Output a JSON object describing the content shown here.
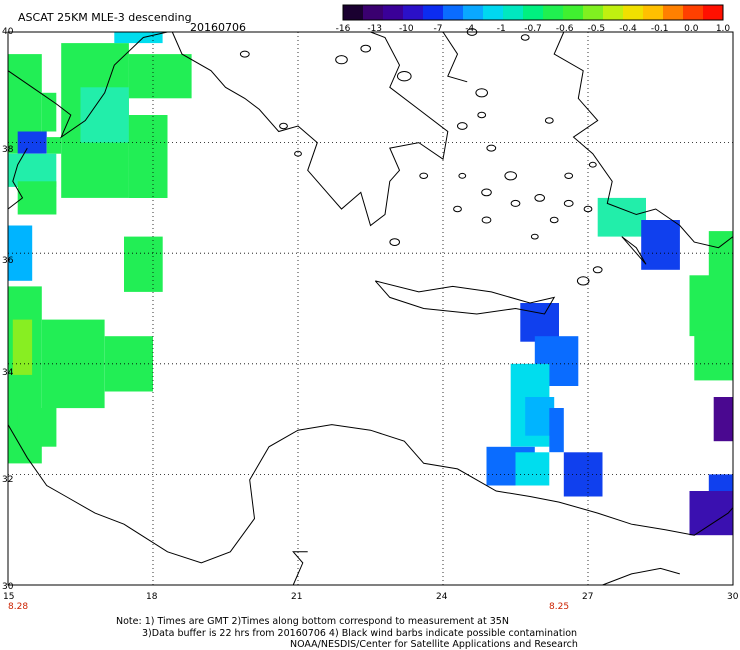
{
  "header": {
    "title": "ASCAT 25KM MLE-3 descending",
    "date": "20160706"
  },
  "colorbar": {
    "labels": [
      "-16",
      "-13",
      "-10",
      "-7",
      "-4",
      "-1",
      "-0.7",
      "-0.6",
      "-0.5",
      "-0.4",
      "-0.1",
      "0.0",
      "1.0"
    ],
    "colors": [
      "#1a0030",
      "#3a0070",
      "#3a0098",
      "#2b10c8",
      "#0c2cf0",
      "#0a6cff",
      "#0aa8ff",
      "#00d8f0",
      "#00e8c0",
      "#00f080",
      "#20f050",
      "#40f030",
      "#80f020",
      "#c0f010",
      "#f0e000",
      "#ffc000",
      "#ff8000",
      "#ff4000",
      "#ff1000"
    ]
  },
  "axes": {
    "lat_labels": [
      "40",
      "38",
      "36",
      "34",
      "32",
      "30"
    ],
    "lon_labels": [
      "15",
      "18",
      "21",
      "24",
      "27",
      "30"
    ]
  },
  "time_labels": [
    "8.28",
    "8.25"
  ],
  "notes": [
    "Note: 1) Times are GMT 2)Times along bottom correspond to measurement at 35N",
    "3)Data buffer is 22 hrs from 20160706 4) Black wind barbs indicate possible contamination",
    "NOAA/NESDIS/Center for Satellite Applications and Research"
  ],
  "map_data": {
    "lon_range": [
      15,
      30
    ],
    "lat_range": [
      30,
      40
    ],
    "grid_lons": [
      18,
      21,
      24,
      27
    ],
    "grid_lats": [
      32,
      34,
      36,
      38
    ],
    "colors": {
      "green": "#22ee55",
      "lightgreen": "#44f044",
      "yellowgreen": "#88ee22",
      "teal": "#22eeaa",
      "cyan": "#00ddee",
      "skyblue": "#00b4ff",
      "blue": "#0a6cff",
      "royal": "#1040ee",
      "deepblue": "#2222d8",
      "indigo": "#3a10b0",
      "purple": "#4a0890",
      "land": "#ffffff",
      "coast": "#000000"
    },
    "cells": [
      {
        "lon": [
          15.0,
          15.7
        ],
        "lat": [
          37.8,
          39.6
        ],
        "c": "green"
      },
      {
        "lon": [
          15.7,
          16.0
        ],
        "lat": [
          38.2,
          38.9
        ],
        "c": "green"
      },
      {
        "lon": [
          15.2,
          15.8
        ],
        "lat": [
          37.8,
          38.2
        ],
        "c": "royal"
      },
      {
        "lon": [
          15.8,
          16.1
        ],
        "lat": [
          37.8,
          38.1
        ],
        "c": "green"
      },
      {
        "lon": [
          15.0,
          16.0
        ],
        "lat": [
          37.2,
          37.8
        ],
        "c": "teal"
      },
      {
        "lon": [
          15.2,
          16.0
        ],
        "lat": [
          36.7,
          37.3
        ],
        "c": "green"
      },
      {
        "lon": [
          16.1,
          17.5
        ],
        "lat": [
          37.0,
          39.8
        ],
        "c": "green"
      },
      {
        "lon": [
          17.5,
          18.3
        ],
        "lat": [
          37.0,
          38.5
        ],
        "c": "green"
      },
      {
        "lon": [
          17.5,
          18.8
        ],
        "lat": [
          38.8,
          39.6
        ],
        "c": "green"
      },
      {
        "lon": [
          16.5,
          17.5
        ],
        "lat": [
          38.0,
          39.0
        ],
        "c": "teal"
      },
      {
        "lon": [
          17.2,
          18.2
        ],
        "lat": [
          39.8,
          40.0
        ],
        "c": "cyan"
      },
      {
        "lon": [
          15.0,
          15.5
        ],
        "lat": [
          35.5,
          36.5
        ],
        "c": "skyblue"
      },
      {
        "lon": [
          15.0,
          15.7
        ],
        "lat": [
          32.2,
          35.4
        ],
        "c": "green"
      },
      {
        "lon": [
          15.1,
          15.5
        ],
        "lat": [
          33.8,
          34.8
        ],
        "c": "yellowgreen"
      },
      {
        "lon": [
          15.7,
          17.0
        ],
        "lat": [
          33.2,
          34.8
        ],
        "c": "green"
      },
      {
        "lon": [
          17.0,
          18.0
        ],
        "lat": [
          33.5,
          34.5
        ],
        "c": "green"
      },
      {
        "lon": [
          17.4,
          18.2
        ],
        "lat": [
          35.3,
          36.3
        ],
        "c": "green"
      },
      {
        "lon": [
          15.2,
          16.0
        ],
        "lat": [
          32.5,
          33.2
        ],
        "c": "green"
      },
      {
        "lon": [
          25.6,
          26.4
        ],
        "lat": [
          34.4,
          35.1
        ],
        "c": "royal"
      },
      {
        "lon": [
          25.9,
          26.8
        ],
        "lat": [
          33.6,
          34.5
        ],
        "c": "blue"
      },
      {
        "lon": [
          25.4,
          26.2
        ],
        "lat": [
          32.5,
          34.0
        ],
        "c": "cyan"
      },
      {
        "lon": [
          25.7,
          26.3
        ],
        "lat": [
          32.7,
          33.4
        ],
        "c": "skyblue"
      },
      {
        "lon": [
          26.2,
          26.5
        ],
        "lat": [
          32.4,
          33.2
        ],
        "c": "blue"
      },
      {
        "lon": [
          24.9,
          25.9
        ],
        "lat": [
          31.8,
          32.5
        ],
        "c": "blue"
      },
      {
        "lon": [
          25.5,
          26.2
        ],
        "lat": [
          31.8,
          32.4
        ],
        "c": "cyan"
      },
      {
        "lon": [
          26.5,
          27.3
        ],
        "lat": [
          31.6,
          32.4
        ],
        "c": "royal"
      },
      {
        "lon": [
          27.2,
          28.2
        ],
        "lat": [
          36.3,
          37.0
        ],
        "c": "teal"
      },
      {
        "lon": [
          28.1,
          28.9
        ],
        "lat": [
          35.7,
          36.6
        ],
        "c": "royal"
      },
      {
        "lon": [
          29.5,
          30.0
        ],
        "lat": [
          35.0,
          36.4
        ],
        "c": "green"
      },
      {
        "lon": [
          29.1,
          30.0
        ],
        "lat": [
          34.5,
          35.6
        ],
        "c": "green"
      },
      {
        "lon": [
          29.2,
          30.0
        ],
        "lat": [
          33.7,
          34.6
        ],
        "c": "green"
      },
      {
        "lon": [
          29.6,
          30.0
        ],
        "lat": [
          32.6,
          33.4
        ],
        "c": "purple"
      },
      {
        "lon": [
          29.5,
          30.0
        ],
        "lat": [
          31.6,
          32.0
        ],
        "c": "royal"
      },
      {
        "lon": [
          29.1,
          30.0
        ],
        "lat": [
          30.9,
          31.7
        ],
        "c": "indigo"
      }
    ],
    "coastlines": [
      [
        [
          15.0,
          39.3
        ],
        [
          15.5,
          39.0
        ],
        [
          16.0,
          38.7
        ],
        [
          16.3,
          38.5
        ],
        [
          16.1,
          38.1
        ],
        [
          16.6,
          38.4
        ],
        [
          17.0,
          38.9
        ],
        [
          17.2,
          39.4
        ],
        [
          17.8,
          39.9
        ],
        [
          18.3,
          40.0
        ]
      ],
      [
        [
          15.4,
          37.9
        ],
        [
          15.2,
          37.6
        ],
        [
          15.1,
          37.3
        ],
        [
          15.3,
          37.0
        ],
        [
          15.0,
          36.8
        ]
      ],
      [
        [
          18.4,
          40.0
        ],
        [
          18.6,
          39.6
        ],
        [
          19.2,
          39.3
        ],
        [
          19.5,
          39.0
        ],
        [
          19.9,
          38.8
        ],
        [
          20.2,
          38.6
        ],
        [
          20.6,
          38.2
        ],
        [
          21.0,
          38.3
        ],
        [
          21.4,
          38.0
        ],
        [
          21.2,
          37.5
        ],
        [
          21.7,
          37.0
        ],
        [
          21.9,
          36.8
        ],
        [
          22.3,
          37.1
        ],
        [
          22.5,
          36.5
        ],
        [
          22.8,
          36.7
        ],
        [
          22.9,
          37.3
        ],
        [
          23.1,
          37.5
        ],
        [
          22.9,
          37.9
        ],
        [
          23.5,
          38.0
        ],
        [
          24.0,
          37.7
        ],
        [
          24.1,
          38.2
        ],
        [
          23.5,
          38.6
        ],
        [
          22.9,
          39.0
        ],
        [
          23.1,
          39.4
        ],
        [
          22.8,
          39.9
        ],
        [
          22.5,
          40.0
        ]
      ],
      [
        [
          24.0,
          40.0
        ],
        [
          24.3,
          39.6
        ],
        [
          24.1,
          39.2
        ],
        [
          24.5,
          39.1
        ]
      ],
      [
        [
          26.5,
          40.0
        ],
        [
          26.3,
          39.6
        ],
        [
          26.9,
          39.3
        ],
        [
          26.8,
          38.8
        ],
        [
          27.2,
          38.4
        ],
        [
          26.7,
          38.1
        ],
        [
          27.1,
          37.8
        ],
        [
          27.5,
          37.3
        ],
        [
          27.4,
          36.9
        ],
        [
          28.0,
          36.7
        ],
        [
          28.4,
          36.8
        ],
        [
          28.9,
          36.5
        ],
        [
          29.2,
          36.2
        ],
        [
          29.7,
          36.1
        ],
        [
          30.0,
          36.3
        ]
      ],
      [
        [
          22.6,
          35.5
        ],
        [
          23.5,
          35.3
        ],
        [
          24.2,
          35.4
        ],
        [
          25.0,
          35.3
        ],
        [
          25.8,
          35.1
        ],
        [
          26.3,
          35.2
        ],
        [
          26.1,
          34.9
        ],
        [
          25.5,
          35.0
        ],
        [
          24.7,
          34.9
        ],
        [
          23.6,
          35.0
        ],
        [
          22.9,
          35.2
        ],
        [
          22.6,
          35.5
        ]
      ],
      [
        [
          27.7,
          36.3
        ],
        [
          28.0,
          36.1
        ],
        [
          28.2,
          35.8
        ],
        [
          28.0,
          36.0
        ],
        [
          27.7,
          36.3
        ]
      ],
      [
        [
          15.0,
          32.9
        ],
        [
          15.4,
          32.3
        ],
        [
          15.8,
          31.8
        ],
        [
          16.2,
          31.6
        ],
        [
          16.8,
          31.3
        ],
        [
          17.4,
          31.1
        ],
        [
          18.3,
          30.6
        ],
        [
          19.0,
          30.4
        ],
        [
          19.6,
          30.6
        ],
        [
          20.1,
          31.2
        ],
        [
          20.0,
          31.9
        ],
        [
          20.4,
          32.5
        ],
        [
          21.0,
          32.8
        ],
        [
          21.7,
          32.9
        ],
        [
          22.5,
          32.8
        ],
        [
          23.2,
          32.6
        ],
        [
          23.6,
          32.2
        ],
        [
          24.3,
          32.1
        ],
        [
          25.1,
          31.7
        ],
        [
          25.8,
          31.6
        ],
        [
          26.4,
          31.5
        ],
        [
          27.2,
          31.3
        ],
        [
          27.9,
          31.1
        ],
        [
          28.6,
          31.0
        ],
        [
          29.2,
          30.9
        ],
        [
          29.9,
          31.3
        ],
        [
          30.0,
          31.4
        ]
      ],
      [
        [
          27.3,
          30.0
        ],
        [
          27.9,
          30.2
        ],
        [
          28.5,
          30.3
        ],
        [
          28.9,
          30.2
        ]
      ],
      [
        [
          20.9,
          30.0
        ],
        [
          21.1,
          30.4
        ],
        [
          20.9,
          30.6
        ],
        [
          21.2,
          30.6
        ]
      ]
    ],
    "islands": [
      [
        21.9,
        39.5,
        0.12
      ],
      [
        22.4,
        39.7,
        0.1
      ],
      [
        23.2,
        39.2,
        0.14
      ],
      [
        24.8,
        38.9,
        0.12
      ],
      [
        24.4,
        38.3,
        0.1
      ],
      [
        25.0,
        37.9,
        0.09
      ],
      [
        25.4,
        37.4,
        0.12
      ],
      [
        24.9,
        37.1,
        0.1
      ],
      [
        25.5,
        36.9,
        0.09
      ],
      [
        26.0,
        37.0,
        0.1
      ],
      [
        26.3,
        36.6,
        0.08
      ],
      [
        24.3,
        36.8,
        0.08
      ],
      [
        24.9,
        36.6,
        0.09
      ],
      [
        26.6,
        36.9,
        0.09
      ],
      [
        25.9,
        36.3,
        0.07
      ],
      [
        27.0,
        36.8,
        0.08
      ],
      [
        26.6,
        37.4,
        0.08
      ],
      [
        27.1,
        37.6,
        0.07
      ],
      [
        24.4,
        37.4,
        0.07
      ],
      [
        23.6,
        37.4,
        0.08
      ],
      [
        26.9,
        35.5,
        0.12
      ],
      [
        27.2,
        35.7,
        0.09
      ],
      [
        23.0,
        36.2,
        0.1
      ],
      [
        24.8,
        38.5,
        0.08
      ],
      [
        26.2,
        38.4,
        0.08
      ],
      [
        21.0,
        37.8,
        0.07
      ],
      [
        20.7,
        38.3,
        0.08
      ],
      [
        19.9,
        39.6,
        0.09
      ],
      [
        24.6,
        40.0,
        0.1
      ],
      [
        25.7,
        39.9,
        0.08
      ]
    ]
  }
}
